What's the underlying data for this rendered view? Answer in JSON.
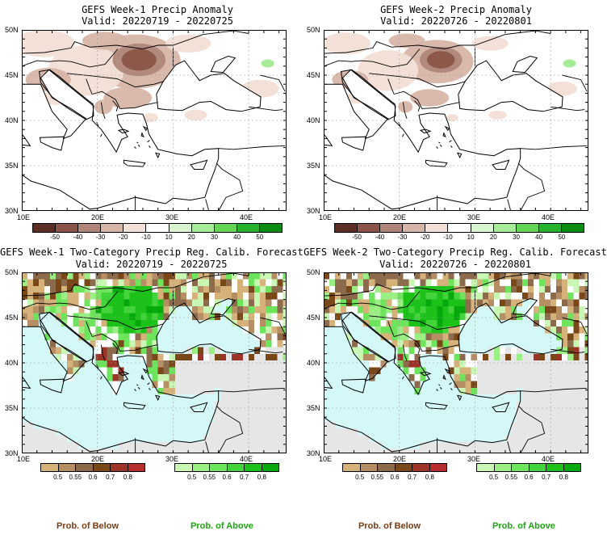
{
  "panels": [
    {
      "title": "GEFS Week-1 Precip Anomaly",
      "valid": "Valid: 20220719 - 20220725",
      "kind": "anomaly"
    },
    {
      "title": "GEFS Week-2 Precip Anomaly",
      "valid": "Valid: 20220726 - 20220801",
      "kind": "anomaly"
    },
    {
      "title": "GEFS Week-1 Two-Category Precip Reg. Calib. Forecast",
      "valid": "Valid: 20220719 - 20220725",
      "kind": "prob"
    },
    {
      "title": "GEFS Week-2 Two-Category Precip Reg. Calib. Forecast",
      "valid": "Valid: 20220726 - 20220801",
      "kind": "prob"
    }
  ],
  "axes": {
    "lat_labels": [
      "50N",
      "45N",
      "40N",
      "35N",
      "30N"
    ],
    "lon_labels": [
      "10E",
      "20E",
      "30E",
      "40E"
    ]
  },
  "anomaly_colorbar": {
    "labels": [
      "-50",
      "-40",
      "-30",
      "-20",
      "-10",
      "10",
      "20",
      "30",
      "40",
      "50"
    ],
    "colors": [
      "#5c2d22",
      "#8a5548",
      "#b0867a",
      "#d7b5a8",
      "#f2dfd6",
      "#ffffff",
      "#d9f5d0",
      "#a6ec98",
      "#62d654",
      "#27b22b",
      "#068c12"
    ]
  },
  "below_colorbar": {
    "labels": [
      "0.5",
      "0.55",
      "0.6",
      "0.7",
      "0.8"
    ],
    "colors": [
      "#d6b27a",
      "#b58f63",
      "#8c6a4c",
      "#7a4719",
      "#9e3427",
      "#b52d2d"
    ]
  },
  "above_colorbar": {
    "labels": [
      "0.5",
      "0.55",
      "0.6",
      "0.7",
      "0.8"
    ],
    "colors": [
      "#c8f7b4",
      "#9aee83",
      "#6ee35c",
      "#43d33a",
      "#1cc21a",
      "#06a90c"
    ]
  },
  "footer": {
    "below": "Prob. of Below",
    "above": "Prob. of Above"
  },
  "colors": {
    "sea_prob": "#d4f7f8",
    "nodata": "#e6e6e6",
    "land": "#ffffff"
  }
}
